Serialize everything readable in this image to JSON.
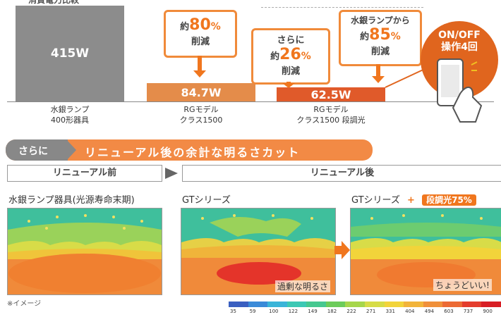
{
  "header": {
    "clipped_title": "消費電力比較"
  },
  "bars": [
    {
      "value_label": "415W",
      "label_line1": "水銀ランプ",
      "label_line2": "400形器具",
      "color": "#8c8c8c"
    },
    {
      "value_label": "84.7W",
      "label_line1": "RGモデル",
      "label_line2": "クラス1500",
      "color": "#e48c4a"
    },
    {
      "value_label": "62.5W",
      "label_line1": "RGモデル",
      "label_line2": "クラス1500 段調光",
      "color": "#e05a2a"
    }
  ],
  "callouts": [
    {
      "prefix": "約",
      "value": "80",
      "pct": "%",
      "suffix": "削減"
    },
    {
      "top": "さらに",
      "prefix": "約",
      "value": "26",
      "pct": "%",
      "suffix": "削減"
    },
    {
      "top": "水銀ランプから",
      "prefix": "約",
      "value": "85",
      "pct": "%",
      "suffix": "削減"
    }
  ],
  "onoff": {
    "line1": "ON/OFF",
    "line2": "操作4回"
  },
  "banner": {
    "left": "さらに",
    "right": "リニューアル後の余計な明るさカット"
  },
  "tabs": {
    "before": "リニューアル前",
    "after": "リニューアル後"
  },
  "panels": [
    {
      "title": "水銀ランプ器具(光源寿命末期)",
      "caption": ""
    },
    {
      "title": "GTシリーズ",
      "caption": "過剰な明るさ"
    },
    {
      "title": "GTシリーズ",
      "plus": "+",
      "badge": "段調光75%",
      "caption": "ちょうどいい!"
    }
  ],
  "note": "※イメージ",
  "legend": {
    "ticks": [
      "35",
      "59",
      "100",
      "122",
      "149",
      "182",
      "222",
      "271",
      "331",
      "404",
      "494",
      "603",
      "737",
      "900"
    ],
    "colors": [
      "#3a5fc0",
      "#3a8ad8",
      "#3ab4d8",
      "#3cc8b4",
      "#46c890",
      "#6ccc5a",
      "#a6d64a",
      "#d6dc46",
      "#f2d43a",
      "#f2b43a",
      "#f0903a",
      "#ec6a34",
      "#e43c2c",
      "#d81e24"
    ]
  },
  "colors": {
    "accent": "#f0761e",
    "circle": "#e0651e"
  }
}
